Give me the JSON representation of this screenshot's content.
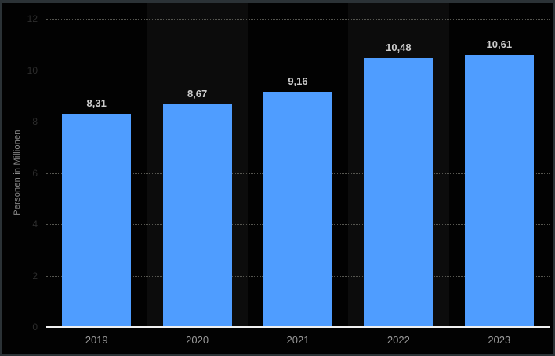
{
  "window": {
    "frame_color": "#2b3236",
    "background_color": "#020202"
  },
  "chart_data": {
    "type": "bar",
    "title": "",
    "categories": [
      "2019",
      "2020",
      "2021",
      "2022",
      "2023"
    ],
    "values": [
      8.31,
      8.67,
      9.16,
      10.48,
      10.61
    ],
    "value_labels": [
      "8,31",
      "8,67",
      "9,16",
      "10,48",
      "10,61"
    ],
    "xlabel": "",
    "ylabel": "Personen in Millionen",
    "ylim": [
      0,
      12
    ],
    "yticks": [
      0,
      2,
      4,
      6,
      8,
      10,
      12
    ],
    "grid": "horizontal-dotted",
    "legend_position": "none",
    "bar_color": "#4f9dff",
    "column_band_color": "#0c0c0c",
    "banded_categories": [
      "2020",
      "2022"
    ],
    "gridline_color": "#565650",
    "axis_line_color": "#f0f0f0",
    "value_label_color": "#cccccc",
    "category_label_color": "#9a9a9a",
    "ytick_label_color": "#2d2d2d",
    "ylabel_color": "#8a8a8a"
  }
}
